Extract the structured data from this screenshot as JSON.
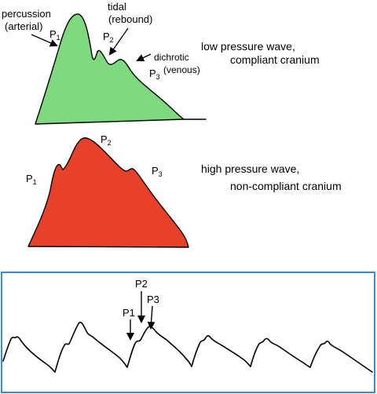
{
  "top_waveform": {
    "fill_color": "#7fd97f",
    "labels": {
      "percussion_line1": "percussion",
      "percussion_line2": "(arterial)",
      "p1": "P",
      "p1_sub": "1",
      "tidal_line1": "tidal",
      "tidal_line2": "(rebound)",
      "p2": "P",
      "p2_sub": "2",
      "dichrotic_line1": "dichrotic",
      "dichrotic_line2": "(venous)",
      "p3": "P",
      "p3_sub": "3"
    },
    "caption_line1": "low pressure wave,",
    "caption_line2": "compliant cranium"
  },
  "middle_waveform": {
    "fill_color": "#e8412a",
    "labels": {
      "p1": "P",
      "p1_sub": "1",
      "p2": "P",
      "p2_sub": "2",
      "p3": "P",
      "p3_sub": "3"
    },
    "caption_line1": "high pressure wave,",
    "caption_line2": "non-compliant cranium"
  },
  "bottom_panel": {
    "border_color": "#3a86d8",
    "labels": {
      "p1": "P1",
      "p2": "P2",
      "p3": "P3"
    }
  }
}
